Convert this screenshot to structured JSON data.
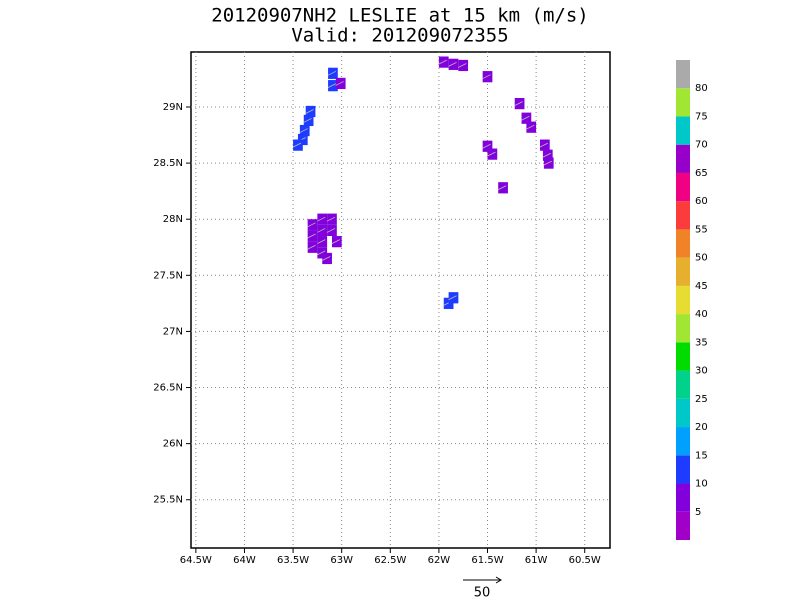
{
  "chart_data": {
    "type": "grid",
    "title": "20120907NH2 LESLIE at 15 km (m/s)",
    "subtitle": "Valid: 201209072355",
    "xlim": [
      -64.55,
      -60.24
    ],
    "ylim": [
      25.07,
      29.49
    ],
    "xticks": [
      {
        "value": -64.5,
        "label": "64.5W"
      },
      {
        "value": -64,
        "label": "64W"
      },
      {
        "value": -63.5,
        "label": "63.5W"
      },
      {
        "value": -63,
        "label": "63W"
      },
      {
        "value": -62.5,
        "label": "62.5W"
      },
      {
        "value": -62,
        "label": "62W"
      },
      {
        "value": -61.5,
        "label": "61.5W"
      },
      {
        "value": -61,
        "label": "61W"
      },
      {
        "value": -60.5,
        "label": "60.5W"
      }
    ],
    "yticks": [
      {
        "value": 25.5,
        "label": "25.5N"
      },
      {
        "value": 26,
        "label": "26N"
      },
      {
        "value": 26.5,
        "label": "26.5N"
      },
      {
        "value": 27,
        "label": "27N"
      },
      {
        "value": 27.5,
        "label": "27.5N"
      },
      {
        "value": 28,
        "label": "28N"
      },
      {
        "value": 28.5,
        "label": "28.5N"
      },
      {
        "value": 29,
        "label": "29N"
      }
    ],
    "grid": true,
    "x": [
      -63.09,
      -63.09,
      -63.01,
      -63.32,
      -63.34,
      -63.38,
      -63.4,
      -63.45,
      -63.2,
      -63.1,
      -63.3,
      -63.2,
      -63.1,
      -63.3,
      -63.2,
      -63.05,
      -63.3,
      -63.2,
      -63.15,
      -61.9,
      -61.85,
      -61.95,
      -61.85,
      -61.75,
      -61.5,
      -61.17,
      -61.1,
      -61.05,
      -60.91,
      -60.88,
      -60.87,
      -61.5,
      -61.45,
      -61.34
    ],
    "y": [
      29.3,
      29.19,
      29.21,
      28.96,
      28.88,
      28.79,
      28.71,
      28.66,
      28.0,
      28.0,
      27.95,
      27.9,
      27.9,
      27.85,
      27.8,
      27.8,
      27.75,
      27.7,
      27.65,
      27.25,
      27.3,
      29.4,
      29.38,
      29.37,
      29.27,
      29.03,
      28.9,
      28.82,
      28.66,
      28.57,
      28.5,
      28.65,
      28.58,
      28.28
    ],
    "values": [
      12,
      12,
      7,
      12,
      12,
      12,
      12,
      12,
      7,
      7,
      7,
      7,
      7,
      7,
      7,
      7,
      7,
      7,
      7,
      12,
      12,
      7,
      7,
      7,
      7,
      7,
      7,
      7,
      7,
      7,
      7,
      7,
      7,
      7
    ],
    "colorbar": {
      "levels": [
        5,
        10,
        15,
        20,
        25,
        30,
        35,
        40,
        45,
        50,
        55,
        60,
        65,
        70,
        75,
        80
      ],
      "colors": [
        "#a000c8",
        "#8200dc",
        "#1e3cff",
        "#00a0ff",
        "#00c8c8",
        "#00d28c",
        "#00dc00",
        "#a0e632",
        "#e6dc32",
        "#e6af2d",
        "#f08228",
        "#fa3c3c",
        "#f00082",
        "#9600c8",
        "#00c8c8",
        "#a0e632",
        "#aaaaaa"
      ]
    },
    "reference_vector": 50
  }
}
